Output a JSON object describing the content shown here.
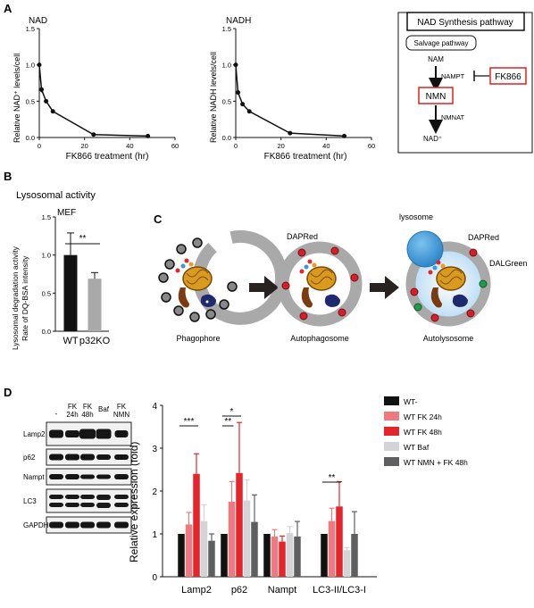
{
  "panels": {
    "A": "A",
    "B": "B",
    "C": "C",
    "D": "D"
  },
  "panel_a": {
    "nad_title": "NAD",
    "nadh_title": "NADH",
    "nad_ylabel": "Relative NAD⁺ levels/cell",
    "nadh_ylabel": "Relative NADH levels/cell",
    "xlabel": "FK866 treatment (hr)",
    "pathway": {
      "title": "NAD Synthesis pathway",
      "salvage": "Salvage pathway",
      "nam": "NAM",
      "nampt": "NAMPT",
      "inhibitor": "FK866",
      "nmn": "NMN",
      "nmnat": "NMNAT",
      "nad": "NAD⁺"
    }
  },
  "panel_b": {
    "title": "Lysosomal activity",
    "subtitle": "MEF",
    "ylabel_line1": "Lysosomal degradation activity",
    "ylabel_line2": "Rate of DQ-BSA intensity",
    "significance": "**"
  },
  "panel_c": {
    "lysosome": "lysosome",
    "daprred_1": "DAPRed",
    "daprred_2": "DAPRed",
    "dalgreen": "DALGreen",
    "phagophore": "Phagophore",
    "autophagosome": "Autophagosome",
    "autolysosome": "Autolysosome"
  },
  "panel_d": {
    "lane_labels": [
      "-",
      "FK\n24h",
      "FK\n48h",
      "Baf",
      "FK\nNMN"
    ],
    "blots": [
      "Lamp2",
      "p62",
      "Nampt",
      "LC3",
      "GAPDH"
    ],
    "lc3_forms": [
      "I",
      "II"
    ],
    "ylabel": "Relative expression (fold)"
  },
  "colors": {
    "black": "#111111",
    "light_red": "#ee7a7f",
    "red": "#e4252b",
    "light_gray": "#d4d4d6",
    "dark_gray": "#5f5f61",
    "membrane_gray": "#a9a9aa",
    "pathway_red": "#e0201f",
    "lysosome_blue": "#3a98d8"
  },
  "chart_data": [
    {
      "type": "line",
      "title": "NAD",
      "xlabel": "FK866 treatment (hr)",
      "ylabel": "Relative NAD⁺ levels/cell",
      "x": [
        0,
        1,
        3,
        6,
        24,
        48
      ],
      "y": [
        1.0,
        0.66,
        0.5,
        0.36,
        0.04,
        0.02
      ],
      "error": [
        0.04,
        0.04,
        0.02,
        0.02,
        0.01,
        0.01
      ],
      "xlim": [
        0,
        60
      ],
      "ylim": [
        0,
        1.5
      ],
      "xticks": [
        0,
        20,
        40,
        60
      ],
      "yticks": [
        0.0,
        0.5,
        1.0,
        1.5
      ]
    },
    {
      "type": "line",
      "title": "NADH",
      "xlabel": "FK866 treatment (hr)",
      "ylabel": "Relative NADH levels/cell",
      "x": [
        0,
        1,
        3,
        6,
        24,
        48
      ],
      "y": [
        1.0,
        0.62,
        0.46,
        0.36,
        0.06,
        0.02
      ],
      "error": [
        0.02,
        0.02,
        0.02,
        0.02,
        0.01,
        0.01
      ],
      "xlim": [
        0,
        60
      ],
      "ylim": [
        0,
        1.5
      ],
      "xticks": [
        0,
        20,
        40,
        60
      ],
      "yticks": [
        0.0,
        0.5,
        1.0,
        1.5
      ]
    },
    {
      "type": "bar",
      "title": "Lysosomal activity",
      "subtitle": "MEF",
      "categories": [
        "WT",
        "p32KO"
      ],
      "values": [
        1.0,
        0.69
      ],
      "error": [
        0.29,
        0.08
      ],
      "ylim": [
        0,
        1.5
      ],
      "yticks": [
        0.0,
        0.5,
        1.0,
        1.5
      ],
      "significance": [
        {
          "from": 0,
          "to": 1,
          "label": "**"
        }
      ]
    },
    {
      "type": "bar",
      "categories": [
        "Lamp2",
        "p62",
        "Nampt",
        "LC3-II/LC3-I"
      ],
      "ylabel": "Relative expression (fold)",
      "ylim": [
        0,
        4
      ],
      "yticks": [
        0,
        1,
        2,
        3,
        4
      ],
      "legend_position": "top-right",
      "series": [
        {
          "name": "WT-",
          "color": "#111111",
          "values": [
            1.0,
            1.0,
            1.0,
            1.0
          ],
          "error": [
            0,
            0,
            0,
            0
          ]
        },
        {
          "name": "WT FK 24h",
          "color": "#ee7a7f",
          "values": [
            1.22,
            1.75,
            0.94,
            1.3
          ],
          "error": [
            0.28,
            0.47,
            0.16,
            0.3
          ]
        },
        {
          "name": "WT FK 48h",
          "color": "#e4252b",
          "values": [
            2.4,
            2.42,
            0.82,
            1.64
          ],
          "error": [
            0.47,
            1.18,
            0.13,
            0.58
          ]
        },
        {
          "name": "WT Baf",
          "color": "#d4d4d6",
          "values": [
            1.3,
            1.78,
            1.02,
            0.62
          ],
          "error": [
            0.38,
            0.48,
            0.15,
            0.06
          ]
        },
        {
          "name": "WT NMN + FK 48h",
          "color": "#5f5f61",
          "values": [
            0.84,
            1.28,
            0.94,
            1.0
          ],
          "error": [
            0.16,
            0.63,
            0.35,
            0.52
          ]
        }
      ],
      "significance": [
        {
          "category": 0,
          "from": 0,
          "to": 2,
          "label": "***"
        },
        {
          "category": 1,
          "from": 0,
          "to": 2,
          "label": "*"
        },
        {
          "category": 1,
          "from": 0,
          "to": 1,
          "label": "**"
        },
        {
          "category": 3,
          "from": 0,
          "to": 2,
          "label": "**"
        }
      ]
    }
  ]
}
